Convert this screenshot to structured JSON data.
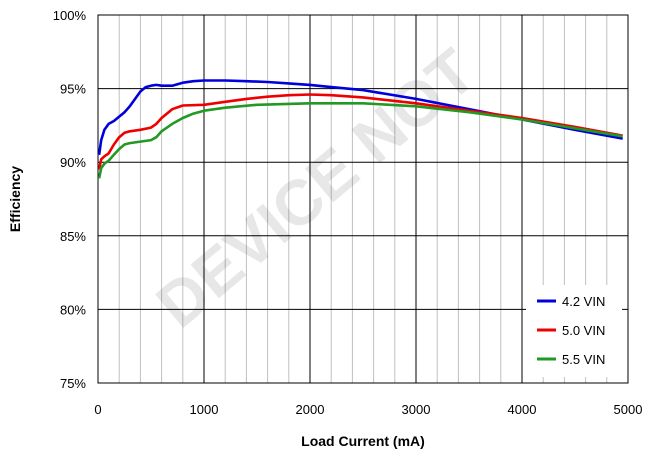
{
  "chart_data": {
    "type": "line",
    "title": "",
    "xlabel": "Load Current (mA)",
    "ylabel": "Efficiency",
    "xlim": [
      0,
      5000
    ],
    "ylim": [
      75,
      100
    ],
    "x_ticks": [
      0,
      1000,
      2000,
      3000,
      4000,
      5000
    ],
    "x_tick_labels": [
      "0",
      "1000",
      "2000",
      "3000",
      "4000",
      "5000"
    ],
    "y_ticks": [
      75,
      80,
      85,
      90,
      95,
      100
    ],
    "y_tick_labels": [
      "75%",
      "80%",
      "85%",
      "90%",
      "95%",
      "100%"
    ],
    "x_minor_step": 200,
    "grid": true,
    "legend_position": "bottom-right",
    "watermark": "DEVICE NOT",
    "series": [
      {
        "name": "4.2 VIN",
        "color": "#0000dd",
        "x": [
          10,
          30,
          60,
          100,
          150,
          200,
          250,
          300,
          350,
          400,
          450,
          500,
          550,
          600,
          700,
          800,
          900,
          1000,
          1200,
          1400,
          1600,
          1800,
          2000,
          2200,
          2500,
          3000,
          3500,
          4000,
          4500,
          4950
        ],
        "y": [
          90.5,
          91.5,
          92.2,
          92.6,
          92.8,
          93.1,
          93.4,
          93.8,
          94.3,
          94.8,
          95.1,
          95.2,
          95.25,
          95.2,
          95.2,
          95.4,
          95.5,
          95.55,
          95.55,
          95.5,
          95.45,
          95.35,
          95.25,
          95.1,
          94.9,
          94.3,
          93.6,
          92.9,
          92.2,
          91.6
        ]
      },
      {
        "name": "5.0 VIN",
        "color": "#ee0000",
        "x": [
          10,
          30,
          60,
          100,
          150,
          200,
          250,
          300,
          400,
          500,
          550,
          600,
          700,
          800,
          1000,
          1200,
          1400,
          1600,
          1800,
          2000,
          2200,
          2500,
          3000,
          3500,
          4000,
          4500,
          4950
        ],
        "y": [
          89.5,
          90.2,
          90.4,
          90.6,
          91.2,
          91.7,
          92.0,
          92.1,
          92.2,
          92.35,
          92.6,
          93.0,
          93.6,
          93.85,
          93.9,
          94.1,
          94.3,
          94.45,
          94.55,
          94.6,
          94.55,
          94.4,
          94.0,
          93.5,
          93.0,
          92.4,
          91.8
        ]
      },
      {
        "name": "5.5 VIN",
        "color": "#229922",
        "x": [
          10,
          30,
          60,
          100,
          150,
          200,
          250,
          300,
          400,
          500,
          550,
          600,
          700,
          800,
          900,
          1000,
          1200,
          1500,
          2000,
          2500,
          3000,
          3500,
          4000,
          4500,
          4950
        ],
        "y": [
          88.9,
          89.6,
          89.9,
          90.1,
          90.5,
          90.9,
          91.2,
          91.3,
          91.4,
          91.5,
          91.7,
          92.1,
          92.6,
          93.0,
          93.3,
          93.5,
          93.7,
          93.9,
          94.0,
          94.0,
          93.8,
          93.4,
          92.9,
          92.3,
          91.75
        ]
      }
    ]
  }
}
